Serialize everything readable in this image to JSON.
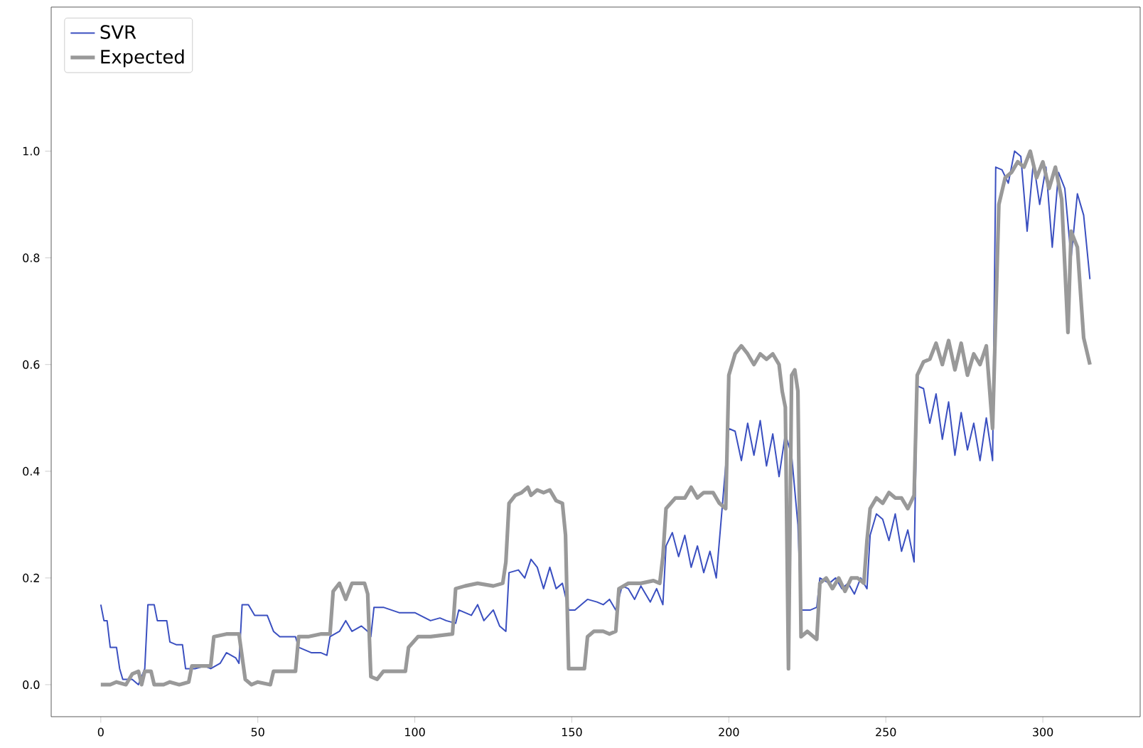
{
  "chart_data": {
    "type": "line",
    "xlim": [
      -15.8,
      331
    ],
    "ylim": [
      -0.06,
      1.27
    ],
    "xticks": [
      0,
      50,
      100,
      150,
      200,
      250,
      300
    ],
    "yticks": [
      {
        "value": 0,
        "label": "0.0"
      },
      {
        "value": 0.2,
        "label": "0.2"
      },
      {
        "value": 0.4,
        "label": "0.4"
      },
      {
        "value": 0.6,
        "label": "0.6"
      },
      {
        "value": 0.8,
        "label": "0.8"
      },
      {
        "value": 1.0,
        "label": "1.0"
      }
    ],
    "legend": "top left",
    "grid": false,
    "line_style": "solid",
    "marker": "none",
    "series": [
      {
        "name": "SVR",
        "color": "#3a4fc0",
        "x": [
          0,
          1,
          2,
          3,
          5,
          6,
          7,
          10,
          12,
          14,
          15,
          17,
          18,
          21,
          22,
          24,
          26,
          27,
          30,
          33,
          35,
          38,
          40,
          43,
          44,
          45,
          47,
          49,
          53,
          55,
          57,
          60,
          62,
          63,
          65,
          67,
          70,
          72,
          73,
          76,
          78,
          80,
          83,
          85,
          86,
          87,
          90,
          95,
          100,
          105,
          108,
          110,
          113,
          114,
          118,
          120,
          122,
          125,
          127,
          129,
          130,
          133,
          135,
          137,
          139,
          141,
          143,
          145,
          147,
          149,
          151,
          153,
          155,
          158,
          160,
          162,
          164,
          166,
          168,
          170,
          172,
          175,
          177,
          179,
          180,
          182,
          184,
          186,
          188,
          190,
          192,
          194,
          196,
          200,
          202,
          204,
          206,
          208,
          210,
          212,
          214,
          216,
          218,
          220,
          222,
          223,
          226,
          228,
          229,
          232,
          234,
          236,
          238,
          240,
          242,
          244,
          245,
          247,
          249,
          251,
          253,
          255,
          257,
          259,
          260,
          262,
          264,
          266,
          268,
          270,
          272,
          274,
          276,
          278,
          280,
          282,
          284,
          285,
          287,
          289,
          291,
          293,
          295,
          297,
          299,
          301,
          303,
          305,
          307,
          309,
          311,
          313,
          315
        ],
        "values": [
          0.15,
          0.12,
          0.12,
          0.07,
          0.07,
          0.03,
          0.01,
          0.01,
          0.0,
          0.03,
          0.15,
          0.15,
          0.12,
          0.12,
          0.08,
          0.075,
          0.075,
          0.03,
          0.03,
          0.035,
          0.03,
          0.04,
          0.06,
          0.05,
          0.04,
          0.15,
          0.15,
          0.13,
          0.13,
          0.1,
          0.09,
          0.09,
          0.09,
          0.07,
          0.065,
          0.06,
          0.06,
          0.055,
          0.09,
          0.1,
          0.12,
          0.1,
          0.11,
          0.1,
          0.09,
          0.145,
          0.145,
          0.135,
          0.135,
          0.12,
          0.125,
          0.12,
          0.115,
          0.14,
          0.13,
          0.15,
          0.12,
          0.14,
          0.11,
          0.1,
          0.21,
          0.215,
          0.2,
          0.235,
          0.22,
          0.18,
          0.22,
          0.18,
          0.19,
          0.14,
          0.14,
          0.15,
          0.16,
          0.155,
          0.15,
          0.16,
          0.14,
          0.185,
          0.18,
          0.16,
          0.185,
          0.155,
          0.18,
          0.15,
          0.26,
          0.285,
          0.24,
          0.28,
          0.22,
          0.26,
          0.21,
          0.25,
          0.2,
          0.48,
          0.475,
          0.42,
          0.49,
          0.43,
          0.495,
          0.41,
          0.47,
          0.39,
          0.47,
          0.43,
          0.3,
          0.14,
          0.14,
          0.145,
          0.2,
          0.19,
          0.2,
          0.18,
          0.19,
          0.17,
          0.2,
          0.18,
          0.28,
          0.32,
          0.31,
          0.27,
          0.32,
          0.25,
          0.29,
          0.23,
          0.56,
          0.555,
          0.49,
          0.545,
          0.46,
          0.53,
          0.43,
          0.51,
          0.44,
          0.49,
          0.42,
          0.5,
          0.42,
          0.97,
          0.965,
          0.94,
          1.0,
          0.99,
          0.85,
          0.98,
          0.9,
          0.97,
          0.82,
          0.96,
          0.93,
          0.8,
          0.92,
          0.88,
          0.76
        ]
      },
      {
        "name": "Expected",
        "color": "#999999",
        "x": [
          0,
          3,
          5,
          8,
          10,
          12,
          13,
          14,
          16,
          17,
          20,
          22,
          25,
          28,
          29,
          32,
          35,
          36,
          40,
          43,
          44,
          46,
          48,
          50,
          54,
          55,
          57,
          62,
          63,
          66,
          70,
          73,
          74,
          76,
          78,
          80,
          84,
          85,
          86,
          88,
          90,
          95,
          97,
          98,
          101,
          105,
          112,
          113,
          116,
          120,
          125,
          128,
          129,
          130,
          132,
          134,
          136,
          137,
          139,
          141,
          143,
          145,
          147,
          148,
          149,
          152,
          154,
          155,
          157,
          160,
          162,
          164,
          165,
          168,
          172,
          176,
          178,
          179,
          180,
          183,
          186,
          188,
          190,
          192,
          195,
          197,
          199,
          200,
          202,
          204,
          206,
          208,
          210,
          212,
          214,
          216,
          217,
          218,
          219,
          220,
          221,
          222,
          223,
          225,
          227,
          228,
          229,
          231,
          233,
          235,
          237,
          239,
          241,
          243,
          244,
          245,
          247,
          249,
          251,
          253,
          255,
          257,
          259,
          260,
          262,
          264,
          266,
          268,
          270,
          272,
          274,
          276,
          278,
          280,
          282,
          284,
          286,
          288,
          290,
          292,
          294,
          296,
          298,
          300,
          302,
          304,
          306,
          308,
          309,
          311,
          313,
          315
        ],
        "values": [
          0.0,
          0.0,
          0.005,
          0.0,
          0.02,
          0.025,
          0.0,
          0.025,
          0.025,
          0.0,
          0.0,
          0.005,
          0.0,
          0.005,
          0.035,
          0.035,
          0.035,
          0.09,
          0.095,
          0.095,
          0.095,
          0.01,
          0.0,
          0.005,
          0.0,
          0.025,
          0.025,
          0.025,
          0.09,
          0.09,
          0.095,
          0.095,
          0.175,
          0.19,
          0.16,
          0.19,
          0.19,
          0.17,
          0.015,
          0.01,
          0.025,
          0.025,
          0.025,
          0.07,
          0.09,
          0.09,
          0.095,
          0.18,
          0.185,
          0.19,
          0.185,
          0.19,
          0.23,
          0.34,
          0.355,
          0.36,
          0.37,
          0.355,
          0.365,
          0.36,
          0.365,
          0.345,
          0.34,
          0.28,
          0.03,
          0.03,
          0.03,
          0.09,
          0.1,
          0.1,
          0.095,
          0.1,
          0.18,
          0.19,
          0.19,
          0.195,
          0.19,
          0.24,
          0.33,
          0.35,
          0.35,
          0.37,
          0.35,
          0.36,
          0.36,
          0.34,
          0.33,
          0.58,
          0.62,
          0.635,
          0.62,
          0.6,
          0.62,
          0.61,
          0.62,
          0.6,
          0.55,
          0.52,
          0.03,
          0.58,
          0.59,
          0.55,
          0.09,
          0.1,
          0.09,
          0.085,
          0.19,
          0.2,
          0.18,
          0.2,
          0.175,
          0.2,
          0.2,
          0.19,
          0.27,
          0.33,
          0.35,
          0.34,
          0.36,
          0.35,
          0.35,
          0.33,
          0.355,
          0.58,
          0.605,
          0.61,
          0.64,
          0.6,
          0.645,
          0.59,
          0.64,
          0.58,
          0.62,
          0.6,
          0.635,
          0.48,
          0.9,
          0.95,
          0.96,
          0.98,
          0.97,
          1.0,
          0.95,
          0.98,
          0.93,
          0.97,
          0.91,
          0.66,
          0.85,
          0.82,
          0.65,
          0.6
        ]
      }
    ]
  }
}
